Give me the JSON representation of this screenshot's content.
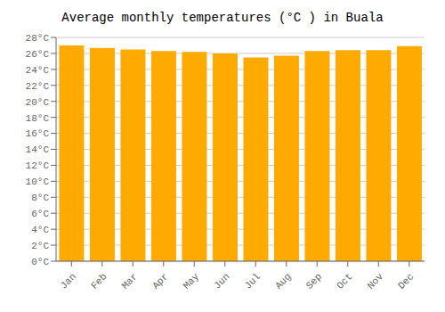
{
  "chart_data": {
    "type": "bar",
    "title": "Average monthly temperatures (°C ) in Buala",
    "categories": [
      "Jan",
      "Feb",
      "Mar",
      "Apr",
      "May",
      "Jun",
      "Jul",
      "Aug",
      "Sep",
      "Oct",
      "Nov",
      "Dec"
    ],
    "values": [
      27.0,
      26.7,
      26.5,
      26.3,
      26.2,
      26.0,
      25.5,
      25.7,
      26.3,
      26.4,
      26.4,
      26.9
    ],
    "color": "#FFAA00",
    "ylim": [
      0,
      28
    ],
    "yticks": [
      {
        "value": 0,
        "label": "0°C"
      },
      {
        "value": 2,
        "label": "2°C"
      },
      {
        "value": 4,
        "label": "4°C"
      },
      {
        "value": 6,
        "label": "6°C"
      },
      {
        "value": 8,
        "label": "8°C"
      },
      {
        "value": 10,
        "label": "10°C"
      },
      {
        "value": 12,
        "label": "12°C"
      },
      {
        "value": 14,
        "label": "14°C"
      },
      {
        "value": 16,
        "label": "16°C"
      },
      {
        "value": 18,
        "label": "18°C"
      },
      {
        "value": 20,
        "label": "20°C"
      },
      {
        "value": 22,
        "label": "22°C"
      },
      {
        "value": 24,
        "label": "24°C"
      },
      {
        "value": 26,
        "label": "26°C"
      },
      {
        "value": 28,
        "label": "28°C"
      }
    ],
    "grid": true
  }
}
